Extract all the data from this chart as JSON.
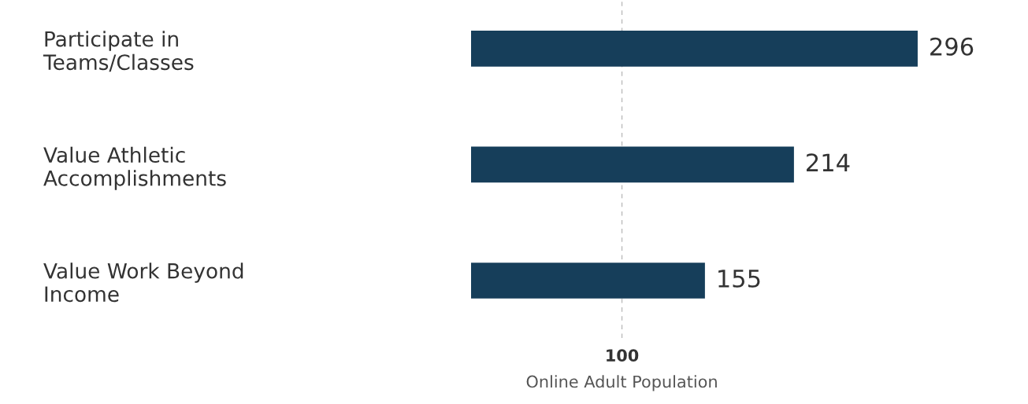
{
  "chart_data": {
    "type": "bar",
    "orientation": "horizontal",
    "categories": [
      "Participate in\nTeams/Classes",
      "Value Athletic\nAccomplishments",
      "Value Work Beyond\nIncome"
    ],
    "values": [
      296,
      214,
      155
    ],
    "color": "#163e5a",
    "data_labels": true,
    "tick_labels": "y",
    "xlabel": "Online Adult Population",
    "ref_lines": [
      {
        "axis": "x",
        "value": 100,
        "label": "100",
        "color": "#bbbbbb",
        "line_style": "dashed"
      }
    ],
    "grid": false,
    "legend": false
  }
}
